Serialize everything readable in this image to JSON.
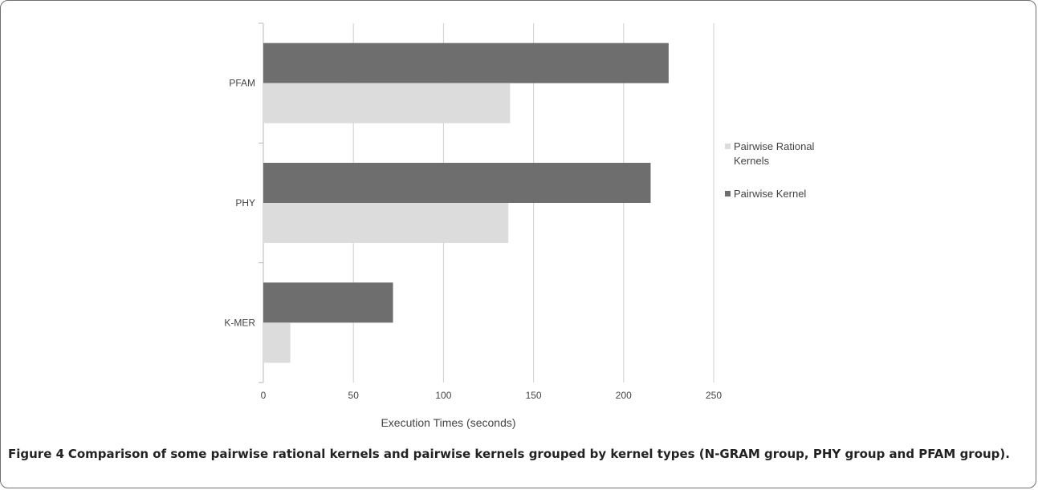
{
  "chart_data": {
    "type": "bar",
    "orientation": "horizontal",
    "categories": [
      "PFAM",
      "PHY",
      "K-MER"
    ],
    "series": [
      {
        "name": "Pairwise Kernel",
        "values": [
          225,
          215,
          72
        ],
        "color": "#6e6e6e"
      },
      {
        "name": "Pairwise Rational Kernels",
        "values": [
          137,
          136,
          15
        ],
        "color": "#dcdcdc"
      }
    ],
    "legend": {
      "placement": "right",
      "items": [
        {
          "lines": [
            "Pairwise Rational",
            "Kernels"
          ],
          "color": "#dcdcdc"
        },
        {
          "lines": [
            "Pairwise Kernel"
          ],
          "color": "#6e6e6e"
        }
      ]
    },
    "xlabel": "Execution Times (seconds)",
    "ylabel": "",
    "xlim": [
      0,
      250
    ],
    "xticks": [
      0,
      50,
      100,
      150,
      200,
      250
    ],
    "grid": "vertical"
  },
  "caption": {
    "label": "Figure 4",
    "text": "Comparison of some pairwise rational kernels and pairwise kernels grouped by kernel types (N-GRAM group, PHY group and PFAM group)."
  }
}
